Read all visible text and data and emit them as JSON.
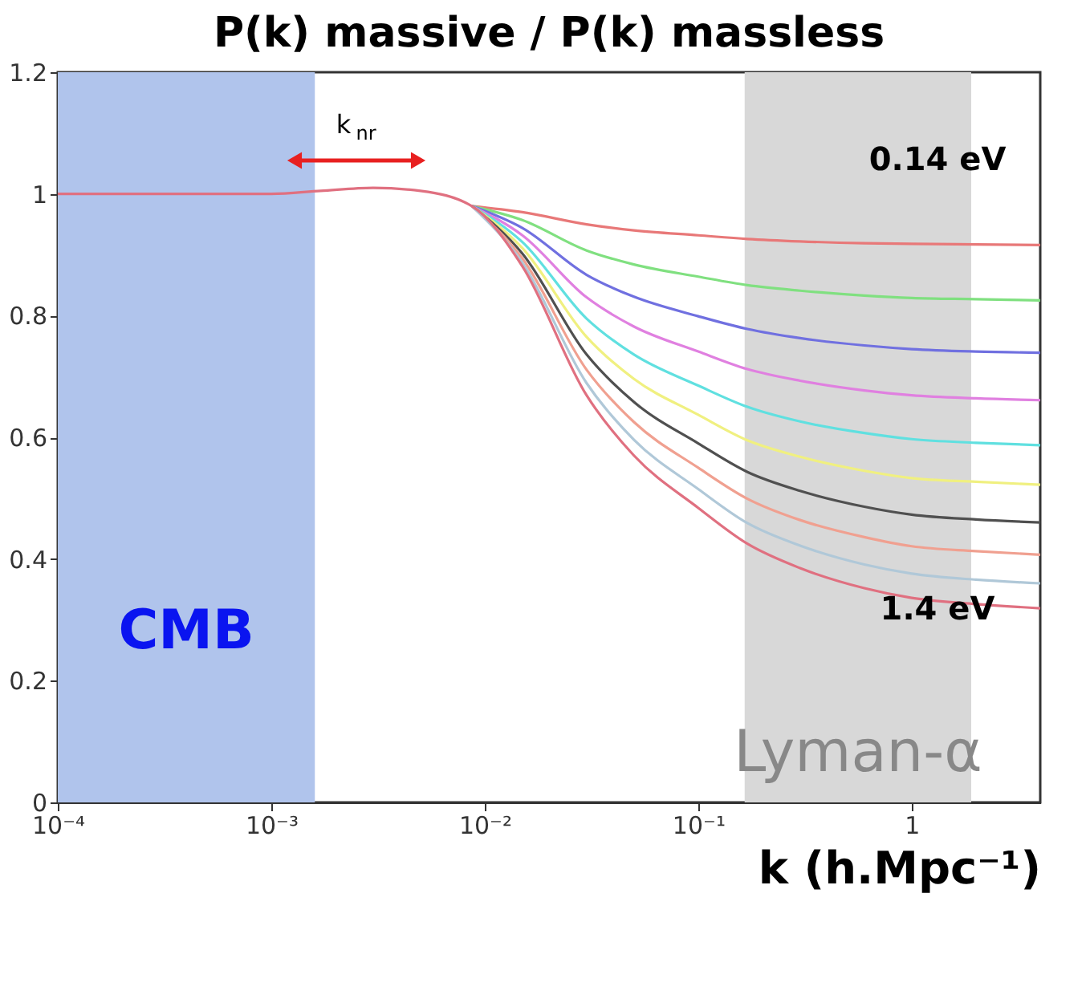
{
  "chart_data": {
    "type": "line",
    "title": "P(k) massive / P(k) massless",
    "xlabel": "k (h.Mpc⁻¹)",
    "log": "x",
    "grid": false,
    "marker": "none",
    "line_style": "solid",
    "xlim": [
      0.0001,
      4
    ],
    "xticks": [
      {
        "value": 0.0001,
        "label": "10⁻⁴"
      },
      {
        "value": 0.001,
        "label": "10⁻³"
      },
      {
        "value": 0.01,
        "label": "10⁻²"
      },
      {
        "value": 0.1,
        "label": "10⁻¹"
      },
      1
    ],
    "ylim": [
      0,
      1.2
    ],
    "yticks": [
      {
        "value": 0,
        "label": "0"
      },
      0.2,
      0.4,
      0.6,
      0.8,
      {
        "value": 1,
        "label": "1"
      },
      1.2
    ],
    "x": [
      0.0001,
      0.001,
      0.0017,
      0.003,
      0.005,
      0.0087,
      0.015,
      0.03,
      0.05,
      0.1,
      0.17,
      0.3,
      0.6,
      1,
      2,
      4
    ],
    "series": [
      {
        "color": "#e87878",
        "values": [
          null,
          null,
          null,
          null,
          null,
          0.98,
          0.97,
          0.95,
          0.94,
          0.932,
          0.926,
          0.922,
          0.919,
          0.918,
          0.917,
          0.916
        ]
      },
      {
        "color": "#80e080",
        "values": [
          null,
          null,
          null,
          null,
          null,
          0.98,
          0.957,
          0.907,
          0.884,
          0.864,
          0.85,
          0.841,
          0.833,
          0.829,
          0.827,
          0.825
        ]
      },
      {
        "color": "#7070e0",
        "values": [
          null,
          null,
          null,
          null,
          null,
          0.98,
          0.944,
          0.867,
          0.831,
          0.799,
          0.778,
          0.763,
          0.751,
          0.745,
          0.741,
          0.739
        ]
      },
      {
        "color": "#e080e0",
        "values": [
          null,
          null,
          null,
          null,
          null,
          0.98,
          0.932,
          0.83,
          0.782,
          0.741,
          0.712,
          0.693,
          0.677,
          0.669,
          0.664,
          0.661
        ]
      },
      {
        "color": "#60e0e0",
        "values": [
          null,
          null,
          null,
          null,
          null,
          0.98,
          0.921,
          0.795,
          0.736,
          0.685,
          0.65,
          0.626,
          0.607,
          0.597,
          0.591,
          0.587
        ]
      },
      {
        "color": "#f0f080",
        "values": [
          null,
          null,
          null,
          null,
          null,
          0.98,
          0.911,
          0.765,
          0.696,
          0.637,
          0.595,
          0.568,
          0.545,
          0.533,
          0.527,
          0.522
        ]
      },
      {
        "color": "#505050",
        "values": [
          null,
          null,
          null,
          null,
          null,
          0.98,
          0.902,
          0.736,
          0.658,
          0.59,
          0.543,
          0.512,
          0.486,
          0.473,
          0.465,
          0.46
        ]
      },
      {
        "color": "#f0a090",
        "values": [
          null,
          null,
          null,
          null,
          null,
          0.98,
          0.894,
          0.711,
          0.625,
          0.55,
          0.499,
          0.464,
          0.436,
          0.421,
          0.413,
          0.407
        ]
      },
      {
        "color": "#b0c8d8",
        "values": [
          null,
          null,
          null,
          null,
          null,
          0.98,
          0.887,
          0.689,
          0.596,
          0.515,
          0.459,
          0.422,
          0.391,
          0.376,
          0.366,
          0.36
        ]
      },
      {
        "color": "#e07080",
        "values": [
          1.0,
          1.0,
          1.005,
          1.01,
          1.005,
          0.98,
          0.881,
          0.669,
          0.57,
          0.484,
          0.425,
          0.385,
          0.352,
          0.336,
          0.326,
          0.319
        ]
      }
    ],
    "bands": [
      {
        "axis": "x",
        "from": 0.0001,
        "to": 0.0016,
        "label": "CMB",
        "color": "#b0c4ec"
      },
      {
        "axis": "x",
        "from": 0.165,
        "to": 1.9,
        "label": "Lyman-α",
        "color": "#d8d8d8"
      }
    ],
    "annotations": [
      "0.14 eV",
      "1.4 eV",
      "k$_{nr}$"
    ]
  }
}
